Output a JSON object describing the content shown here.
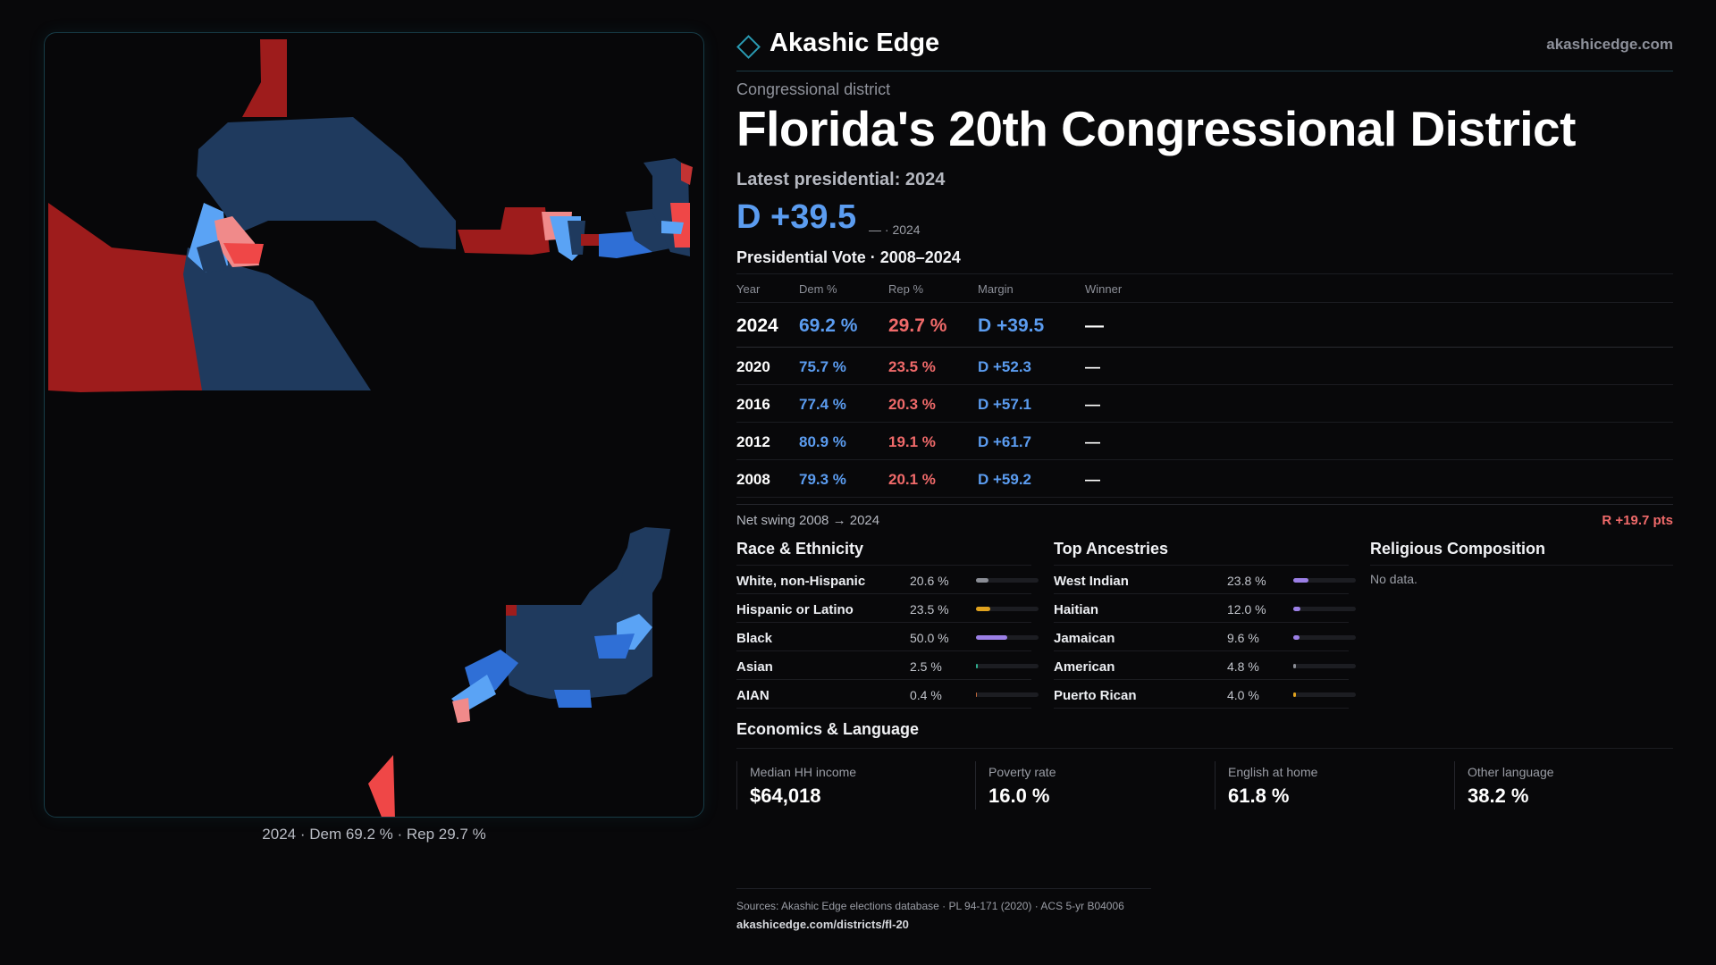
{
  "brand": {
    "name": "Akashic Edge",
    "url": "akashicedge.com"
  },
  "district": {
    "kicker": "Congressional district",
    "title": "Florida's 20th Congressional District",
    "latest_label": "Latest presidential: 2024",
    "margin_big": "D +39.5",
    "margin_sub": "— · 2024"
  },
  "vote": {
    "title": "Presidential Vote · 2008–2024",
    "headers": {
      "year": "Year",
      "dem": "Dem %",
      "rep": "Rep %",
      "margin": "Margin",
      "winner": "Winner"
    },
    "rows": [
      {
        "year": "2024",
        "dem": "69.2 %",
        "rep": "29.7 %",
        "margin": "D +39.5",
        "winner": "—"
      },
      {
        "year": "2020",
        "dem": "75.7 %",
        "rep": "23.5 %",
        "margin": "D +52.3",
        "winner": "—"
      },
      {
        "year": "2016",
        "dem": "77.4 %",
        "rep": "20.3 %",
        "margin": "D +57.1",
        "winner": "—"
      },
      {
        "year": "2012",
        "dem": "80.9 %",
        "rep": "19.1 %",
        "margin": "D +61.7",
        "winner": "—"
      },
      {
        "year": "2008",
        "dem": "79.3 %",
        "rep": "20.1 %",
        "margin": "D +59.2",
        "winner": "—"
      }
    ],
    "swing_label": "Net swing 2008 → 2024",
    "swing_value": "R +19.7 pts"
  },
  "race": {
    "title": "Race & Ethnicity",
    "items": [
      {
        "label": "White, non-Hispanic",
        "value": "20.6 %",
        "pct": 20.6,
        "color": "#8a8d95"
      },
      {
        "label": "Hispanic or Latino",
        "value": "23.5 %",
        "pct": 23.5,
        "color": "#e0a21e"
      },
      {
        "label": "Black",
        "value": "50.0 %",
        "pct": 50.0,
        "color": "#9b7fe6"
      },
      {
        "label": "Asian",
        "value": "2.5 %",
        "pct": 2.5,
        "color": "#2fae8f"
      },
      {
        "label": "AIAN",
        "value": "0.4 %",
        "pct": 0.4,
        "color": "#c2683a"
      }
    ]
  },
  "ancestry": {
    "title": "Top Ancestries",
    "items": [
      {
        "label": "West Indian",
        "value": "23.8 %",
        "pct": 23.8,
        "color": "#9b7fe6"
      },
      {
        "label": "Haitian",
        "value": "12.0 %",
        "pct": 12.0,
        "color": "#9b7fe6"
      },
      {
        "label": "Jamaican",
        "value": "9.6 %",
        "pct": 9.6,
        "color": "#9b7fe6"
      },
      {
        "label": "American",
        "value": "4.8 %",
        "pct": 4.8,
        "color": "#8a8d95"
      },
      {
        "label": "Puerto Rican",
        "value": "4.0 %",
        "pct": 4.0,
        "color": "#e0a21e"
      }
    ]
  },
  "religion": {
    "title": "Religious Composition",
    "empty": "No data."
  },
  "economics": {
    "title": "Economics & Language",
    "cards": [
      {
        "label": "Median HH income",
        "value": "$64,018"
      },
      {
        "label": "Poverty rate",
        "value": "16.0 %"
      },
      {
        "label": "English at home",
        "value": "61.8 %"
      },
      {
        "label": "Other language",
        "value": "38.2 %"
      }
    ]
  },
  "map": {
    "caption": "2024 · Dem 69.2 % · Rep 29.7 %",
    "colors": {
      "dem_dark": "#1f3a5e",
      "dem_mid": "#2f6fd6",
      "dem_light": "#5aa3f5",
      "rep_dark": "#9e1c1c",
      "rep_light": "#ef4747",
      "rep_pale": "#f08a8a"
    }
  },
  "sources": {
    "line": "Sources: Akashic Edge elections database · PL 94-171 (2020) · ACS 5-yr B04006",
    "url": "akashicedge.com/districts/fl-20"
  }
}
